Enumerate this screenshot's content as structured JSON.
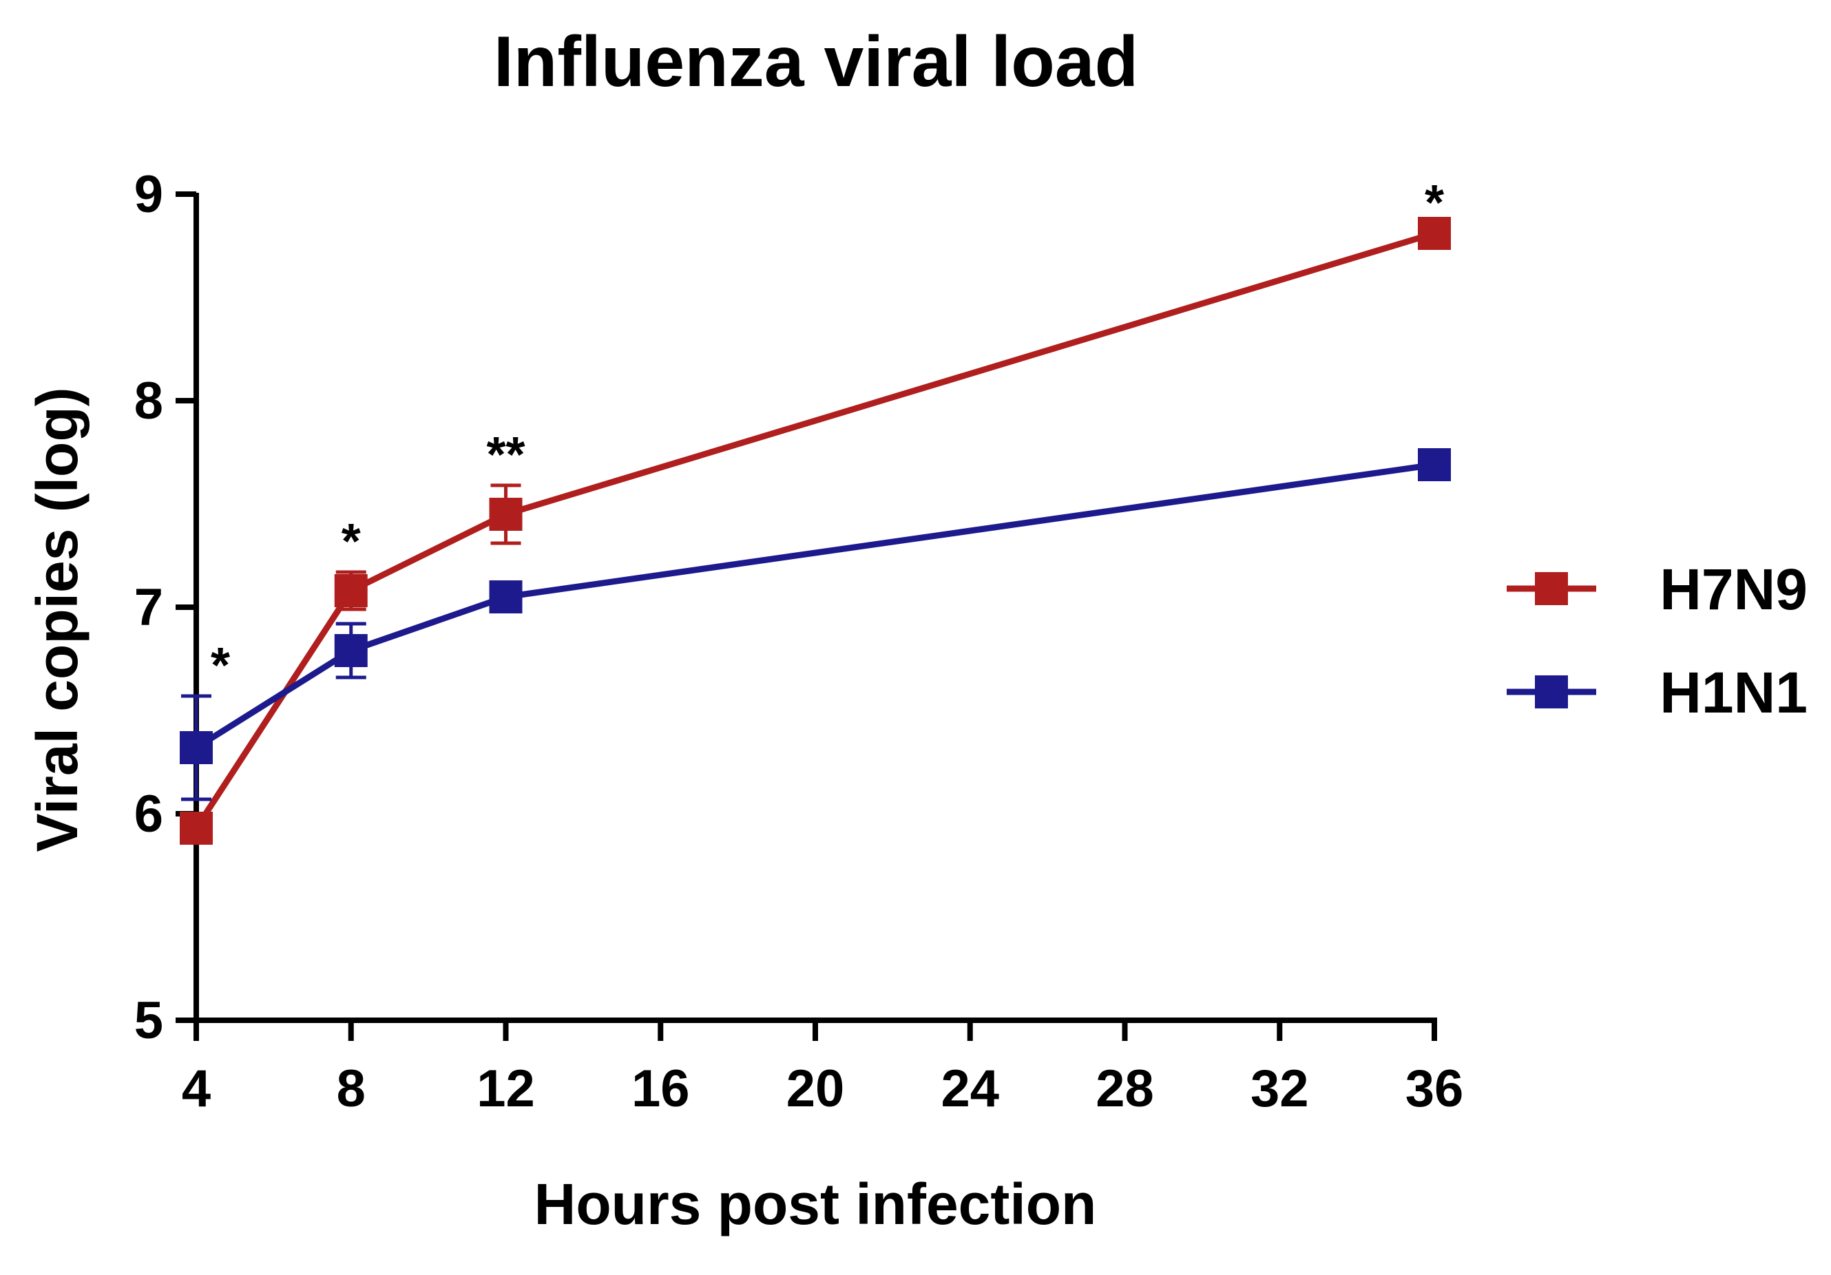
{
  "chart_data": {
    "type": "line",
    "title": "Influenza viral load",
    "xlabel": "Hours post infection",
    "ylabel": "Viral copies (log)",
    "xlim": [
      4,
      36
    ],
    "ylim": [
      5,
      9
    ],
    "xticks": [
      "4",
      "8",
      "12",
      "16",
      "20",
      "24",
      "28",
      "32",
      "36"
    ],
    "yticks": [
      "5",
      "6",
      "7",
      "8",
      "9"
    ],
    "x": [
      4,
      8,
      12,
      36
    ],
    "series": [
      {
        "name": "H7N9",
        "color": "#b01e1e",
        "values": [
          5.93,
          7.08,
          7.45,
          8.81
        ],
        "errors": [
          0.0,
          0.09,
          0.14,
          0.0
        ]
      },
      {
        "name": "H1N1",
        "color": "#1c1a8c",
        "values": [
          6.32,
          6.79,
          7.05,
          7.69
        ],
        "errors": [
          0.25,
          0.13,
          0.0,
          0.0
        ]
      }
    ],
    "annotations": [
      {
        "x": 4,
        "y": 6.57,
        "text": "*"
      },
      {
        "x": 8,
        "y": 7.17,
        "text": "*"
      },
      {
        "x": 12,
        "y": 7.59,
        "text": "**"
      },
      {
        "x": 36,
        "y": 8.81,
        "text": "*"
      }
    ],
    "legend_position": "right",
    "grid": false
  }
}
